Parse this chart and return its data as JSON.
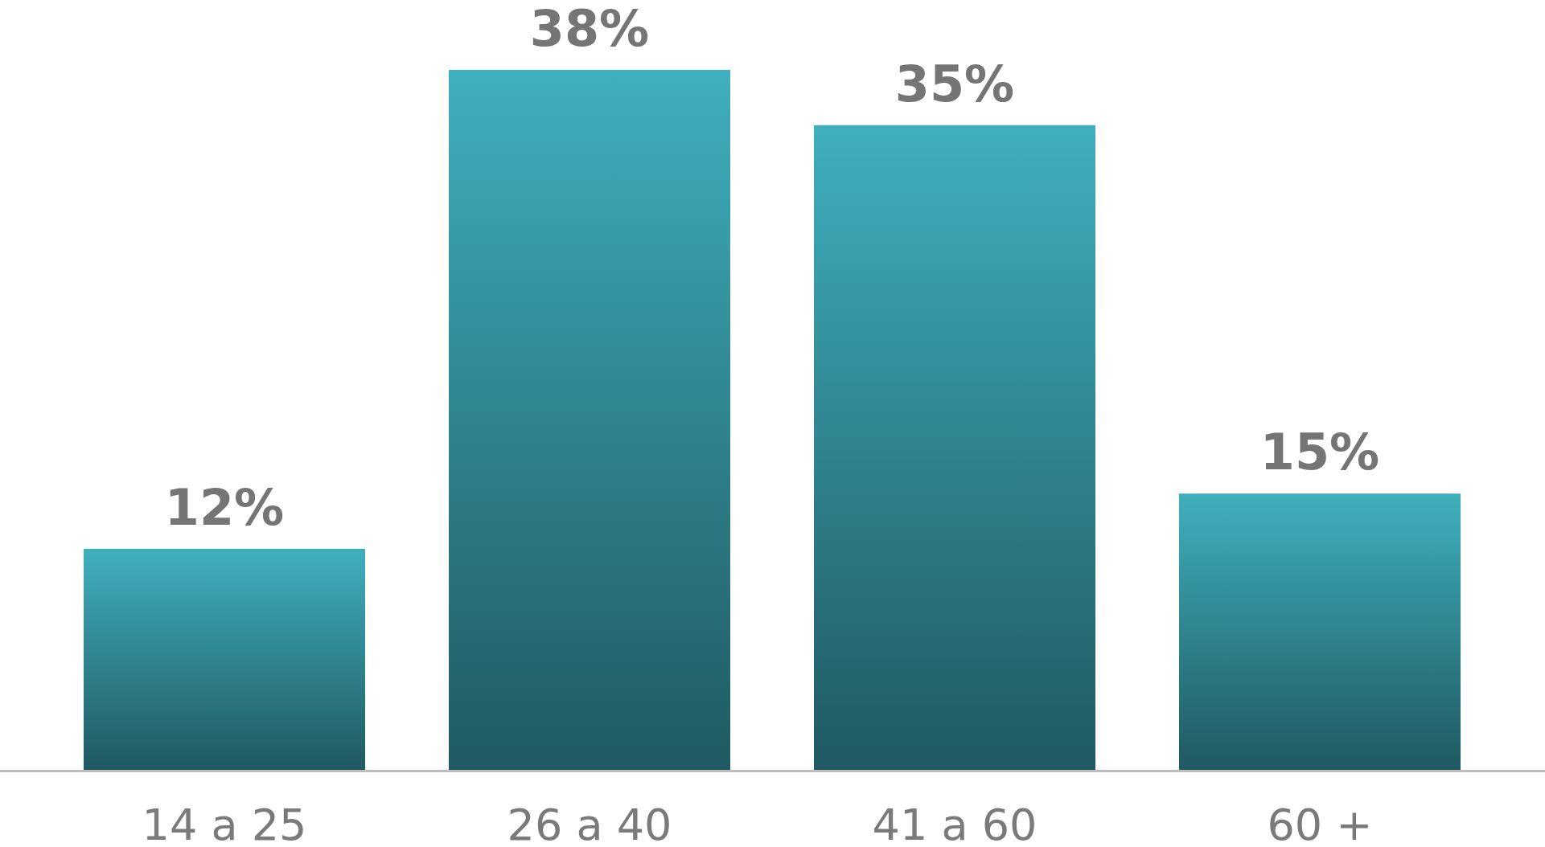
{
  "chart_data": {
    "type": "bar",
    "categories": [
      "14 a 25",
      "26 a 40",
      "41 a 60",
      "60 +"
    ],
    "values": [
      12,
      38,
      35,
      15
    ],
    "value_labels": [
      "12%",
      "38%",
      "35%",
      "15%"
    ],
    "color": "#2e7f8a"
  }
}
